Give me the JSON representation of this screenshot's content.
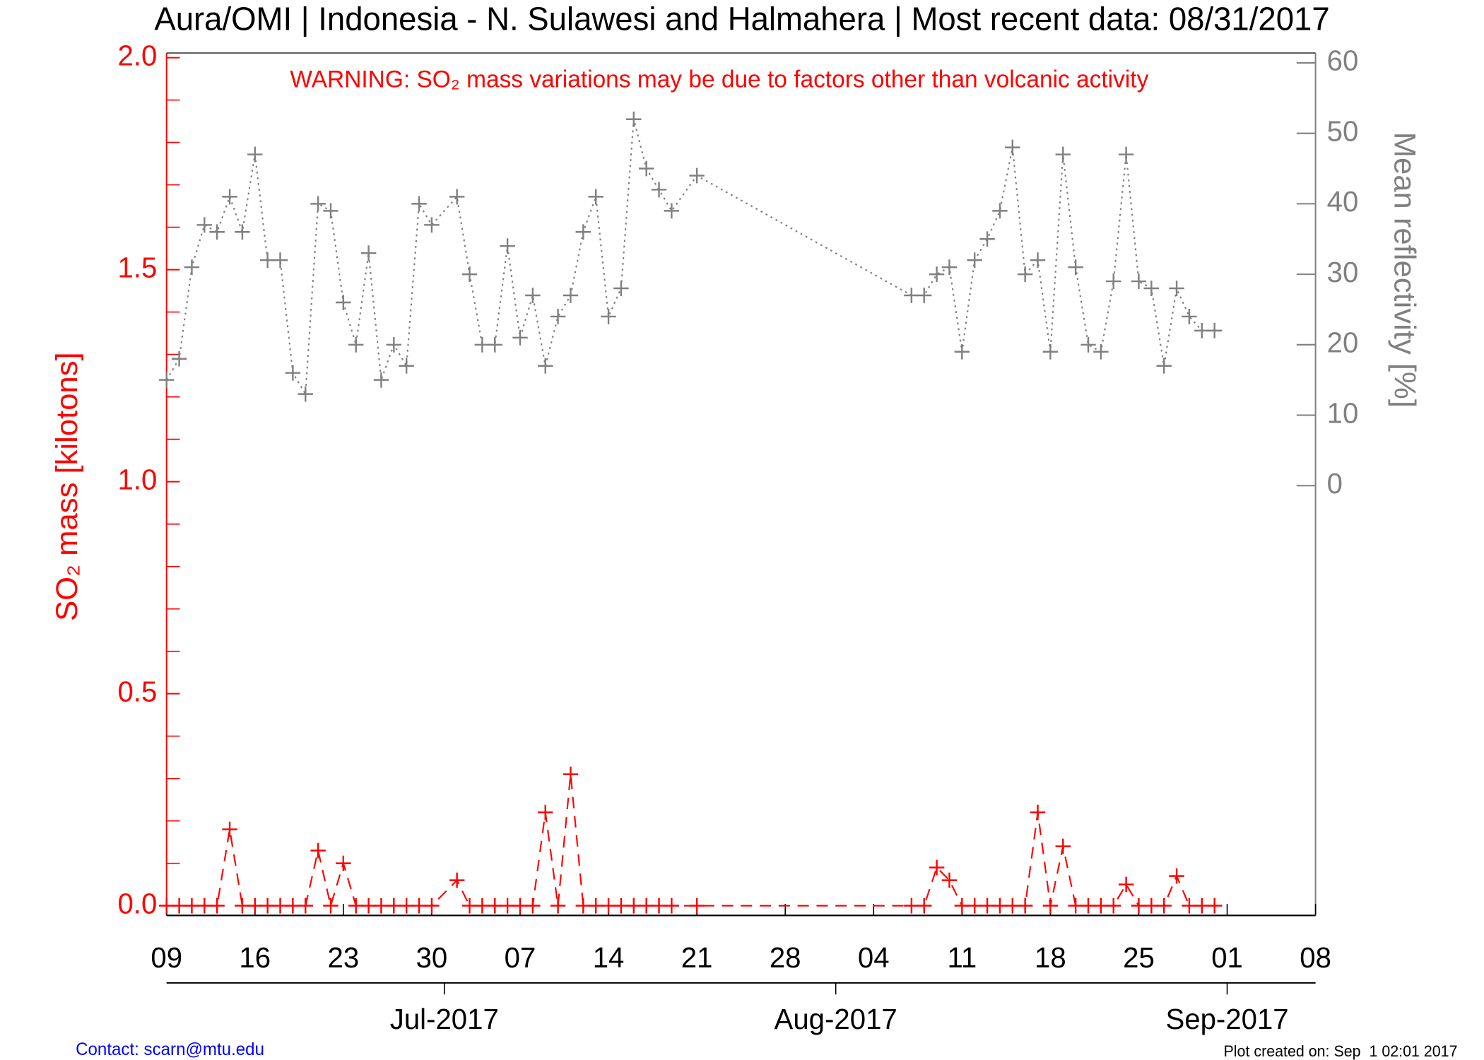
{
  "chart_data": {
    "type": "line",
    "title": "Aura/OMI | Indonesia - N. Sulawesi and Halmahera | Most recent data: 08/31/2017",
    "warning": "WARNING: SO₂ mass variations may be due to factors other than volcanic activity",
    "y_label": "SO₂ mass [kilotons]",
    "y2_label": "Mean reflectivity [%]",
    "contact": "Contact: scarn@mtu.edu",
    "plot_created": "Plot created on: Sep  1 02:01 2017",
    "x": [
      "2017-06-09",
      "2017-06-10",
      "2017-06-11",
      "2017-06-12",
      "2017-06-13",
      "2017-06-14",
      "2017-06-15",
      "2017-06-16",
      "2017-06-17",
      "2017-06-18",
      "2017-06-19",
      "2017-06-20",
      "2017-06-21",
      "2017-06-22",
      "2017-06-23",
      "2017-06-24",
      "2017-06-25",
      "2017-06-26",
      "2017-06-27",
      "2017-06-28",
      "2017-06-29",
      "2017-06-30",
      "2017-07-02",
      "2017-07-03",
      "2017-07-04",
      "2017-07-05",
      "2017-07-06",
      "2017-07-07",
      "2017-07-08",
      "2017-07-09",
      "2017-07-10",
      "2017-07-11",
      "2017-07-12",
      "2017-07-13",
      "2017-07-14",
      "2017-07-15",
      "2017-07-16",
      "2017-07-17",
      "2017-07-18",
      "2017-07-19",
      "2017-07-21",
      "2017-08-07",
      "2017-08-08",
      "2017-08-09",
      "2017-08-10",
      "2017-08-11",
      "2017-08-12",
      "2017-08-13",
      "2017-08-14",
      "2017-08-15",
      "2017-08-16",
      "2017-08-17",
      "2017-08-18",
      "2017-08-19",
      "2017-08-20",
      "2017-08-21",
      "2017-08-22",
      "2017-08-23",
      "2017-08-24",
      "2017-08-25",
      "2017-08-26",
      "2017-08-27",
      "2017-08-28",
      "2017-08-29",
      "2017-08-30",
      "2017-08-31"
    ],
    "series": [
      {
        "color": "#ff0000",
        "style": "dashed",
        "values": [
          0,
          0,
          0,
          0,
          0,
          0.18,
          0,
          0,
          0,
          0,
          0,
          0,
          0.13,
          0,
          0.1,
          0,
          0,
          0,
          0,
          0,
          0,
          0,
          0.06,
          0,
          0,
          0,
          0,
          0,
          0,
          0.22,
          0,
          0.31,
          0,
          0,
          0,
          0,
          0,
          0,
          0,
          0,
          0,
          0,
          0,
          0.09,
          0.06,
          0,
          0,
          0,
          0,
          0,
          0,
          0.22,
          0,
          0.14,
          0,
          0,
          0,
          0,
          0.05,
          0,
          0,
          0,
          0.07,
          0,
          0,
          0
        ]
      },
      {
        "color": "#808080",
        "style": "dotted",
        "axis": "y2",
        "values": [
          15,
          18,
          31,
          37,
          36,
          41,
          36,
          47,
          32,
          32,
          16,
          13,
          40,
          39,
          26,
          20,
          33,
          15,
          20,
          17,
          40,
          37,
          41,
          30,
          20,
          20,
          34,
          21,
          27,
          17,
          24,
          27,
          36,
          41,
          24,
          28,
          52,
          45,
          42,
          39,
          44,
          27,
          27,
          30,
          31,
          19,
          32,
          35,
          39,
          48,
          30,
          32,
          19,
          47,
          31,
          20,
          19,
          29,
          47,
          29,
          28,
          17,
          28,
          24,
          22,
          22
        ]
      }
    ],
    "xlim": [
      "2017-06-09",
      "2017-09-08"
    ],
    "xticks": [
      {
        "value": "2017-06-09",
        "label": "09"
      },
      {
        "value": "2017-06-16",
        "label": "16"
      },
      {
        "value": "2017-06-23",
        "label": "23"
      },
      {
        "value": "2017-06-30",
        "label": "30"
      },
      {
        "value": "2017-07-07",
        "label": "07"
      },
      {
        "value": "2017-07-14",
        "label": "14"
      },
      {
        "value": "2017-07-21",
        "label": "21"
      },
      {
        "value": "2017-07-28",
        "label": "28"
      },
      {
        "value": "2017-08-04",
        "label": "04"
      },
      {
        "value": "2017-08-11",
        "label": "11"
      },
      {
        "value": "2017-08-18",
        "label": "18"
      },
      {
        "value": "2017-08-25",
        "label": "25"
      },
      {
        "value": "2017-09-01",
        "label": "01"
      },
      {
        "value": "2017-09-08",
        "label": "08"
      }
    ],
    "month_ticks": [
      {
        "value": "2017-07-01",
        "label": "Jul-2017"
      },
      {
        "value": "2017-08-01",
        "label": "Aug-2017"
      },
      {
        "value": "2017-09-01",
        "label": "Sep-2017"
      }
    ],
    "ylim": [
      -0.023,
      2.011
    ],
    "yticks": [
      {
        "value": 0,
        "label": "0.0"
      },
      {
        "value": 0.5,
        "label": "0.5"
      },
      {
        "value": 1,
        "label": "1.0"
      },
      {
        "value": 1.5,
        "label": "1.5"
      },
      {
        "value": 2,
        "label": "2.0"
      }
    ],
    "yticks_minor": [
      0.1,
      0.2,
      0.3,
      0.4,
      0.6,
      0.7,
      0.8,
      0.9,
      1.1,
      1.2,
      1.3,
      1.4,
      1.6,
      1.7,
      1.8,
      1.9
    ],
    "y2lim": [
      -61,
      61.4
    ],
    "y2ticks": [
      0,
      10,
      20,
      30,
      40,
      50,
      60
    ],
    "y_color": "#ff0000",
    "y2_color": "#808080"
  }
}
